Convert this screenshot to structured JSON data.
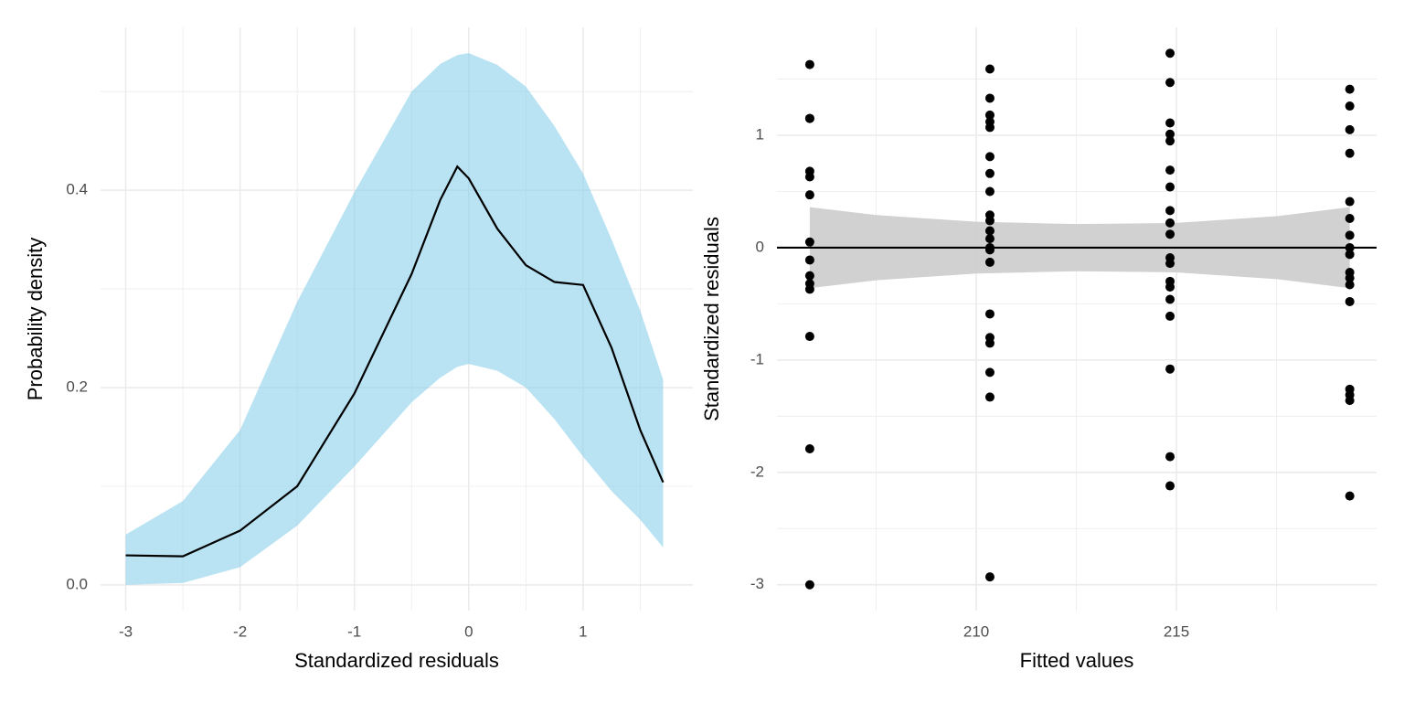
{
  "chart_data": [
    {
      "type": "line",
      "x_label": "Standardized residuals",
      "y_label": "Probability density",
      "x": [
        -3,
        -2.5,
        -2,
        -1.5,
        -1,
        -0.5,
        -0.25,
        -0.1,
        0,
        0.25,
        0.5,
        0.75,
        1,
        1.25,
        1.5,
        1.7
      ],
      "series": [
        {
          "color": "#000000",
          "values": [
            0.03,
            0.029,
            0.055,
            0.1,
            0.194,
            0.315,
            0.39,
            0.424,
            0.412,
            0.361,
            0.324,
            0.307,
            0.304,
            0.24,
            0.157,
            0.104
          ]
        }
      ],
      "band": {
        "color": "#87ceeb",
        "upper": [
          0.051,
          0.085,
          0.157,
          0.287,
          0.398,
          0.5,
          0.528,
          0.537,
          0.539,
          0.527,
          0.505,
          0.465,
          0.417,
          0.35,
          0.278,
          0.208
        ],
        "lower": [
          0,
          0.002,
          0.018,
          0.06,
          0.12,
          0.185,
          0.21,
          0.221,
          0.224,
          0.217,
          0.2,
          0.168,
          0.13,
          0.095,
          0.066,
          0.038
        ]
      },
      "xlim": [
        -3.22,
        1.96
      ],
      "ylim": [
        -0.026,
        0.565
      ],
      "xticks": [
        -3,
        -2,
        -1,
        0,
        1
      ],
      "yticks": [
        {
          "value": 0,
          "label": "0.0"
        },
        0.2,
        0.4
      ],
      "x_minor_grid": [
        -2.5,
        -1.5,
        -0.5,
        0.5,
        1.5
      ],
      "y_minor_grid": [
        0.1,
        0.3,
        0.5
      ],
      "grid": true
    },
    {
      "type": "scatter",
      "x_label": "Fitted values",
      "y_label": "Standardized residuals",
      "series": [
        {
          "color": "#000000",
          "x": [
            205.84,
            205.84,
            205.84,
            205.84,
            205.84,
            205.84,
            205.84,
            205.84,
            205.84,
            205.84,
            205.84,
            205.84,
            205.84,
            205.84,
            210.34,
            210.34,
            210.34,
            210.34,
            210.34,
            210.34,
            210.34,
            210.34,
            210.34,
            210.34,
            210.34,
            210.34,
            210.34,
            210.34,
            210.34,
            210.34,
            210.34,
            210.34,
            210.34,
            210.34,
            210.34,
            214.84,
            214.84,
            214.84,
            214.84,
            214.84,
            214.84,
            214.84,
            214.84,
            214.84,
            214.84,
            214.84,
            214.84,
            214.84,
            214.84,
            214.84,
            214.84,
            214.84,
            214.84,
            214.84,
            219.33,
            219.33,
            219.33,
            219.33,
            219.33,
            219.33,
            219.33,
            219.33,
            219.33,
            219.33,
            219.33,
            219.33,
            219.33,
            219.33,
            219.33,
            219.33,
            219.33
          ],
          "values": [
            1.63,
            1.15,
            1.15,
            0.68,
            0.63,
            0.47,
            0.05,
            -0.11,
            -0.25,
            -0.32,
            -0.37,
            -0.79,
            -1.79,
            -3.0,
            1.59,
            1.33,
            1.18,
            1.12,
            1.07,
            0.81,
            0.66,
            0.5,
            0.29,
            0.24,
            0.15,
            0.08,
            0.0,
            -0.02,
            -0.13,
            -0.59,
            -0.8,
            -0.85,
            -1.11,
            -1.33,
            -2.93,
            1.73,
            1.47,
            1.11,
            1.01,
            0.95,
            0.69,
            0.54,
            0.33,
            0.22,
            0.12,
            -0.09,
            -0.14,
            -0.3,
            -0.35,
            -0.46,
            -0.61,
            -1.08,
            -1.86,
            -2.12,
            1.41,
            1.26,
            1.05,
            0.84,
            0.41,
            0.26,
            0.11,
            0.0,
            -0.06,
            -0.22,
            -0.27,
            -0.33,
            -0.48,
            -1.26,
            -1.31,
            -1.36,
            -2.21
          ]
        }
      ],
      "band": {
        "color": "#cccccc",
        "x": [
          205.84,
          207.5,
          210,
          212.5,
          215,
          217.5,
          219.33
        ],
        "upper": [
          0.36,
          0.29,
          0.23,
          0.21,
          0.22,
          0.28,
          0.36
        ],
        "lower": [
          -0.36,
          -0.29,
          -0.23,
          -0.21,
          -0.22,
          -0.28,
          -0.36
        ]
      },
      "hline": 0,
      "xlim": [
        205.02,
        220.0
      ],
      "ylim": [
        -3.23,
        1.96
      ],
      "xticks": [
        210,
        215
      ],
      "yticks": [
        -3,
        -2,
        -1,
        0,
        1
      ],
      "x_minor_grid": [
        207.5,
        212.5,
        217.5
      ],
      "y_minor_grid": [
        -2.5,
        -1.5,
        -0.5,
        0.5,
        1.5
      ],
      "grid": true
    }
  ]
}
